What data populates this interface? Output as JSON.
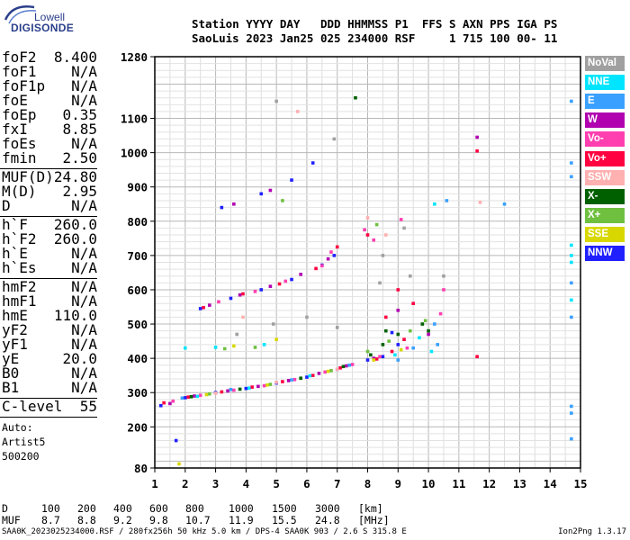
{
  "logo": {
    "top_text": "Lowell",
    "main_text": "DIGISONDE"
  },
  "header": {
    "line1": "Station YYYY DAY   DDD HHMMSS P1  FFS S AXN PPS IGA PS",
    "line2": "SaoLuis 2023 Jan25 025 234000 RSF     1 715 100 00- 11"
  },
  "params": {
    "group1": [
      {
        "label": "foF2",
        "value": "8.400"
      },
      {
        "label": "foF1",
        "value": "N/A"
      },
      {
        "label": "foF1p",
        "value": "N/A"
      },
      {
        "label": "foE",
        "value": "N/A"
      },
      {
        "label": "foEp",
        "value": "0.35"
      },
      {
        "label": "fxI",
        "value": "8.85"
      },
      {
        "label": "foEs",
        "value": "N/A"
      },
      {
        "label": "fmin",
        "value": "2.50"
      }
    ],
    "group2": [
      {
        "label": "MUF(D)",
        "value": "24.80"
      },
      {
        "label": "M(D)",
        "value": "2.95"
      },
      {
        "label": "D",
        "value": "N/A"
      }
    ],
    "group3": [
      {
        "label": "h`F",
        "value": "260.0"
      },
      {
        "label": "h`F2",
        "value": "260.0"
      },
      {
        "label": "h`E",
        "value": "N/A"
      },
      {
        "label": "h`Es",
        "value": "N/A"
      }
    ],
    "group4": [
      {
        "label": "hmF2",
        "value": "N/A"
      },
      {
        "label": "hmF1",
        "value": "N/A"
      },
      {
        "label": "hmE",
        "value": "110.0"
      },
      {
        "label": "yF2",
        "value": "N/A"
      },
      {
        "label": "yF1",
        "value": "N/A"
      },
      {
        "label": "yE",
        "value": "20.0"
      },
      {
        "label": "B0",
        "value": "N/A"
      },
      {
        "label": "B1",
        "value": "N/A"
      }
    ],
    "clevel": {
      "label": "C-level",
      "value": "55"
    },
    "auto_lines": [
      "Auto:",
      "Artist5",
      "500200"
    ]
  },
  "legend": [
    {
      "label": "NoVal",
      "color": "#a0a0a0"
    },
    {
      "label": "NNE",
      "color": "#00e5ff"
    },
    {
      "label": "E",
      "color": "#3aa0ff"
    },
    {
      "label": "W",
      "color": "#b000b0"
    },
    {
      "label": "Vo-",
      "color": "#ff3fb0"
    },
    {
      "label": "Vo+",
      "color": "#ff0040"
    },
    {
      "label": "SSW",
      "color": "#ffb0b0"
    },
    {
      "label": "X-",
      "color": "#006000"
    },
    {
      "label": "X+",
      "color": "#70c040"
    },
    {
      "label": "SSE",
      "color": "#d8d800"
    },
    {
      "label": "NNW",
      "color": "#2020ff"
    }
  ],
  "footer": {
    "d_label": "D",
    "d_values": [
      "100",
      "200",
      "400",
      "600",
      "800",
      "1000",
      "1500",
      "3000",
      "[km]"
    ],
    "muf_label": "MUF",
    "muf_values": [
      "8.7",
      "8.8",
      "9.2",
      "9.8",
      "10.7",
      "11.9",
      "15.5",
      "24.8",
      "[MHz]"
    ],
    "info": "SAA0K_2023025234000.RSF / 280fx256h 50 kHz 5.0 km / DPS-4 SAA0K 903 / 2.6 S 315.8 E",
    "version": "Ion2Png 1.3.17"
  },
  "chart_data": {
    "type": "scatter",
    "xlim": [
      1,
      15
    ],
    "ylim": [
      80,
      1280
    ],
    "x_ticks": [
      "1",
      "2",
      "3",
      "4",
      "5",
      "6",
      "7",
      "8",
      "9",
      "10",
      "11",
      "12",
      "13",
      "14",
      "15"
    ],
    "y_ticks": [
      "80",
      "200",
      "300",
      "400",
      "500",
      "600",
      "700",
      "800",
      "900",
      "1000",
      "1100",
      "1280"
    ],
    "y_tick_values": [
      80,
      200,
      300,
      400,
      500,
      600,
      700,
      800,
      900,
      1000,
      1100,
      1280
    ],
    "grid": true,
    "series": [
      {
        "name": "NNW",
        "color": "#2020ff",
        "points": [
          [
            1.2,
            262
          ],
          [
            2.0,
            285
          ],
          [
            3.0,
            300
          ],
          [
            4.0,
            312
          ],
          [
            5.0,
            328
          ],
          [
            6.0,
            345
          ],
          [
            7.0,
            368
          ],
          [
            8.0,
            395
          ],
          [
            8.5,
            405
          ],
          [
            2.5,
            545
          ],
          [
            3.5,
            575
          ],
          [
            4.5,
            600
          ],
          [
            5.5,
            630
          ],
          [
            6.5,
            672
          ],
          [
            6.9,
            700
          ],
          [
            3.2,
            840
          ],
          [
            4.5,
            880
          ],
          [
            5.5,
            920
          ],
          [
            8.8,
            475
          ],
          [
            9.0,
            440
          ],
          [
            1.7,
            160
          ],
          [
            6.2,
            970
          ]
        ]
      },
      {
        "name": "W",
        "color": "#b000b0",
        "points": [
          [
            1.5,
            268
          ],
          [
            2.3,
            290
          ],
          [
            3.4,
            305
          ],
          [
            4.4,
            318
          ],
          [
            5.4,
            335
          ],
          [
            6.4,
            356
          ],
          [
            7.3,
            378
          ],
          [
            8.2,
            400
          ],
          [
            2.8,
            555
          ],
          [
            3.8,
            585
          ],
          [
            4.8,
            610
          ],
          [
            5.8,
            645
          ],
          [
            6.7,
            690
          ],
          [
            3.6,
            850
          ],
          [
            4.8,
            890
          ],
          [
            9.0,
            540
          ],
          [
            10.0,
            470
          ],
          [
            11.6,
            1045
          ]
        ]
      },
      {
        "name": "Vo+",
        "color": "#ff0040",
        "points": [
          [
            1.3,
            270
          ],
          [
            2.1,
            287
          ],
          [
            3.2,
            302
          ],
          [
            4.2,
            316
          ],
          [
            5.2,
            332
          ],
          [
            6.2,
            350
          ],
          [
            7.1,
            372
          ],
          [
            8.3,
            398
          ],
          [
            8.8,
            420
          ],
          [
            8.6,
            520
          ],
          [
            9.0,
            600
          ],
          [
            9.5,
            560
          ],
          [
            2.6,
            548
          ],
          [
            3.9,
            588
          ],
          [
            5.1,
            617
          ],
          [
            6.3,
            662
          ],
          [
            7.0,
            725
          ],
          [
            8.0,
            760
          ],
          [
            11.6,
            1005
          ],
          [
            11.6,
            405
          ],
          [
            9.2,
            455
          ]
        ]
      },
      {
        "name": "Vo-",
        "color": "#ff3fb0",
        "points": [
          [
            1.6,
            275
          ],
          [
            2.5,
            292
          ],
          [
            3.6,
            307
          ],
          [
            4.6,
            320
          ],
          [
            5.6,
            338
          ],
          [
            6.6,
            360
          ],
          [
            7.5,
            382
          ],
          [
            8.4,
            405
          ],
          [
            9.3,
            430
          ],
          [
            10.4,
            530
          ],
          [
            10.5,
            600
          ],
          [
            3.1,
            565
          ],
          [
            4.3,
            595
          ],
          [
            5.3,
            625
          ],
          [
            6.5,
            670
          ],
          [
            6.8,
            710
          ],
          [
            7.9,
            775
          ],
          [
            8.2,
            745
          ],
          [
            9.1,
            805
          ]
        ]
      },
      {
        "name": "X-",
        "color": "#006000",
        "points": [
          [
            2.2,
            288
          ],
          [
            3.8,
            310
          ],
          [
            5.8,
            342
          ],
          [
            7.2,
            376
          ],
          [
            8.1,
            410
          ],
          [
            8.5,
            440
          ],
          [
            9.0,
            470
          ],
          [
            9.8,
            500
          ],
          [
            10.0,
            480
          ],
          [
            8.6,
            480
          ],
          [
            7.6,
            1160
          ]
        ]
      },
      {
        "name": "X+",
        "color": "#70c040",
        "points": [
          [
            2.8,
            296
          ],
          [
            4.8,
            324
          ],
          [
            6.8,
            364
          ],
          [
            8.0,
            420
          ],
          [
            8.7,
            450
          ],
          [
            9.4,
            480
          ],
          [
            9.9,
            510
          ],
          [
            3.3,
            428
          ],
          [
            4.3,
            432
          ],
          [
            8.3,
            790
          ],
          [
            5.2,
            860
          ]
        ]
      },
      {
        "name": "E",
        "color": "#3aa0ff",
        "points": [
          [
            1.9,
            284
          ],
          [
            3.5,
            309
          ],
          [
            5.5,
            337
          ],
          [
            7.4,
            380
          ],
          [
            9.0,
            395
          ],
          [
            9.5,
            430
          ],
          [
            10.2,
            500
          ],
          [
            10.3,
            440
          ],
          [
            14.7,
            620
          ],
          [
            14.7,
            520
          ],
          [
            14.7,
            930
          ],
          [
            14.7,
            970
          ],
          [
            14.7,
            240
          ],
          [
            14.7,
            260
          ],
          [
            14.7,
            165
          ],
          [
            14.7,
            1150
          ],
          [
            10.6,
            860
          ],
          [
            12.5,
            850
          ]
        ]
      },
      {
        "name": "NNE",
        "color": "#00e5ff",
        "points": [
          [
            2.4,
            289
          ],
          [
            4.1,
            313
          ],
          [
            6.1,
            349
          ],
          [
            8.9,
            410
          ],
          [
            9.7,
            460
          ],
          [
            10.1,
            420
          ],
          [
            14.7,
            570
          ],
          [
            14.7,
            700
          ],
          [
            14.7,
            730
          ],
          [
            14.7,
            680
          ],
          [
            2.0,
            430
          ],
          [
            3.0,
            432
          ],
          [
            4.6,
            440
          ],
          [
            10.2,
            850
          ]
        ]
      },
      {
        "name": "SSE",
        "color": "#d8d800",
        "points": [
          [
            2.7,
            294
          ],
          [
            4.7,
            322
          ],
          [
            6.7,
            362
          ],
          [
            8.2,
            395
          ],
          [
            9.1,
            425
          ],
          [
            1.8,
            92
          ],
          [
            5.0,
            455
          ],
          [
            3.6,
            436
          ]
        ]
      },
      {
        "name": "SSW",
        "color": "#ffb0b0",
        "points": [
          [
            3.0,
            298
          ],
          [
            5.0,
            330
          ],
          [
            7.0,
            368
          ],
          [
            8.6,
            760
          ],
          [
            8.0,
            810
          ],
          [
            3.9,
            520
          ],
          [
            5.7,
            1120
          ],
          [
            11.7,
            855
          ]
        ]
      },
      {
        "name": "NoVal",
        "color": "#a0a0a0",
        "points": [
          [
            3.7,
            470
          ],
          [
            4.9,
            500
          ],
          [
            6.0,
            520
          ],
          [
            7.0,
            490
          ],
          [
            8.4,
            620
          ],
          [
            9.4,
            640
          ],
          [
            10.5,
            640
          ],
          [
            5.0,
            1150
          ],
          [
            6.9,
            1040
          ],
          [
            8.5,
            700
          ],
          [
            9.2,
            780
          ]
        ]
      }
    ]
  }
}
